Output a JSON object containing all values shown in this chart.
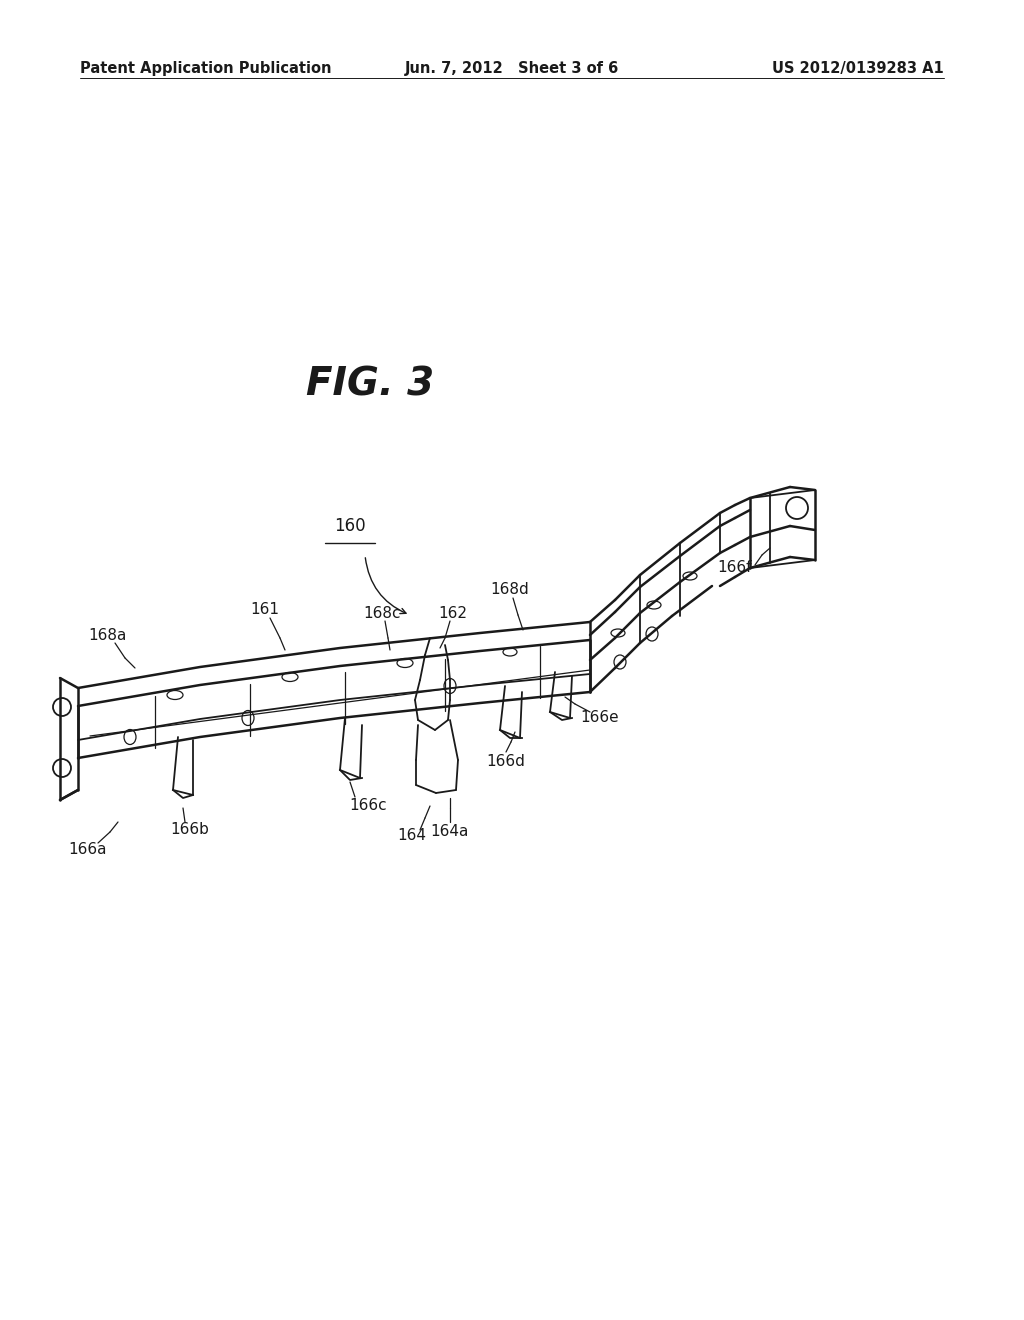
{
  "background_color": "#ffffff",
  "header_left": "Patent Application Publication",
  "header_center": "Jun. 7, 2012   Sheet 3 of 6",
  "header_right": "US 2012/0139283 A1",
  "fig_title": "FIG. 3",
  "line_color": "#1a1a1a",
  "text_color": "#1a1a1a",
  "font_size_header": 10.5,
  "font_size_title": 28,
  "font_size_labels": 11
}
